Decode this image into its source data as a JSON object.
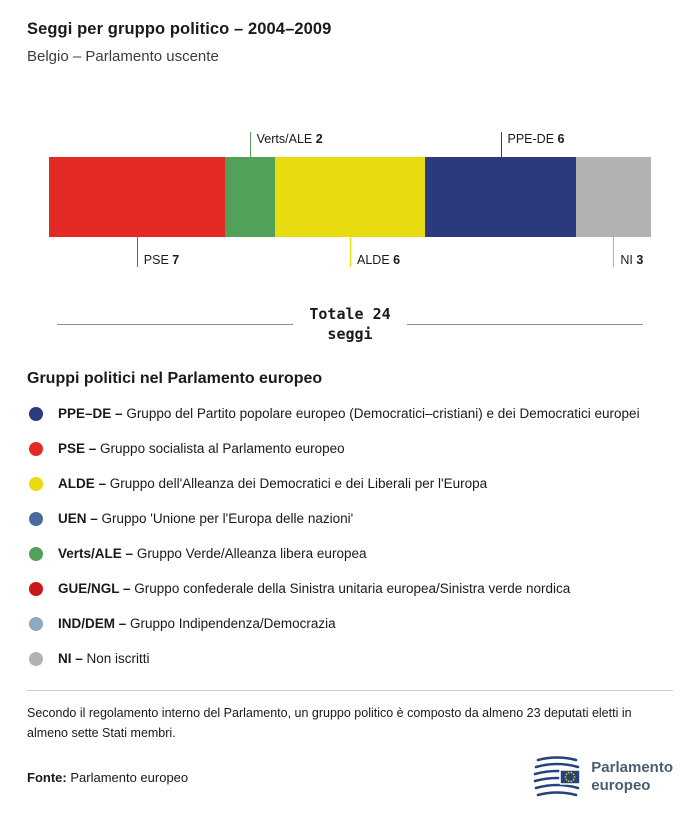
{
  "header": {
    "title": "Seggi per gruppo politico – 2004–2009",
    "subtitle": "Belgio – Parlamento uscente"
  },
  "chart_data": {
    "type": "bar",
    "variant": "horizontal-stacked-seats",
    "title": "Seggi per gruppo politico – 2004–2009",
    "total": 24,
    "segments": [
      {
        "name": "PSE",
        "seats": 7,
        "color": "#e32a24",
        "label_side": "below"
      },
      {
        "name": "Verts/ALE",
        "seats": 2,
        "color": "#53a158",
        "label_side": "above"
      },
      {
        "name": "ALDE",
        "seats": 6,
        "color": "#e8dc0e",
        "label_side": "below"
      },
      {
        "name": "PPE-DE",
        "seats": 6,
        "color": "#2a3a7c",
        "label_side": "above"
      },
      {
        "name": "NI",
        "seats": 3,
        "color": "#b2b2b2",
        "label_side": "below"
      }
    ],
    "total_label": {
      "line1": "Totale 24",
      "line2": "seggi"
    }
  },
  "legend": {
    "heading": "Gruppi politici nel Parlamento europeo",
    "items": [
      {
        "abbr": "PPE–DE –",
        "desc": "Gruppo del Partito popolare europeo (Democratici–cristiani) e dei Democratici europei",
        "color": "#2a3a7c"
      },
      {
        "abbr": "PSE –",
        "desc": "Gruppo socialista al Parlamento europeo",
        "color": "#e32a24"
      },
      {
        "abbr": "ALDE –",
        "desc": "Gruppo dell'Alleanza dei Democratici e dei Liberali per l'Europa",
        "color": "#e8dc0e"
      },
      {
        "abbr": "UEN –",
        "desc": "Gruppo 'Unione per l'Europa delle nazioni'",
        "color": "#4a6a9d"
      },
      {
        "abbr": "Verts/ALE –",
        "desc": "Gruppo Verde/Alleanza libera europea",
        "color": "#53a158"
      },
      {
        "abbr": "GUE/NGL –",
        "desc": "Gruppo confederale della Sinistra unitaria europea/Sinistra verde nordica",
        "color": "#c9151b"
      },
      {
        "abbr": "IND/DEM –",
        "desc": "Gruppo Indipendenza/Democrazia",
        "color": "#8cabc3"
      },
      {
        "abbr": "NI –",
        "desc": "Non iscritti",
        "color": "#b2b2b2"
      }
    ]
  },
  "footer": {
    "note": "Secondo il regolamento interno del Parlamento, un gruppo politico è composto da almeno 23 deputati eletti in almeno sette Stati membri.",
    "source_label": "Fonte:",
    "source_text": "Parlamento europeo",
    "logo": {
      "line1": "Parlamento",
      "line2": "europeo",
      "brand_color": "#24437c"
    }
  }
}
